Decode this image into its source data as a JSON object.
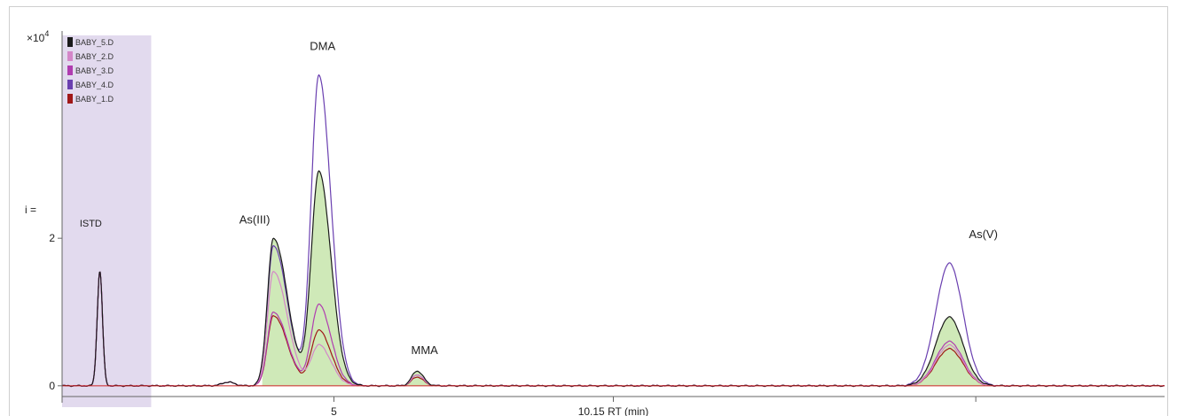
{
  "chart_data": {
    "type": "line",
    "y_multiplier_label": "×10",
    "y_multiplier_exp": "4",
    "y_ticks": [
      {
        "value": 0,
        "label": "0"
      },
      {
        "value": 2,
        "label": "2"
      }
    ],
    "y_axis_fragment": "i =",
    "x_tick_labels": [
      "5",
      "10.15 RT (min)"
    ],
    "xlim": [
      0,
      14.6
    ],
    "ylim": [
      -0.05,
      4.75
    ],
    "legend": [
      "BABY_5.D",
      "BABY_2.D",
      "BABY_3.D",
      "BABY_4.D",
      "BABY_1.D"
    ],
    "peak_labels": [
      {
        "text": "ISTD",
        "x": 0.38,
        "y": 2.16
      },
      {
        "text": "As(III)",
        "x": 2.55,
        "y": 2.2
      },
      {
        "text": "DMA",
        "x": 3.45,
        "y": 4.55
      },
      {
        "text": "MMA",
        "x": 4.8,
        "y": 0.43
      },
      {
        "text": "As(V)",
        "x": 12.2,
        "y": 2.0
      }
    ],
    "peaks": [
      {
        "name": "ISTD",
        "rt": 0.5,
        "width": 0.035,
        "skew": 1.0
      },
      {
        "name": "As(III)",
        "rt": 2.8,
        "width": 0.08,
        "skew": 2.3
      },
      {
        "name": "DMA",
        "rt": 3.4,
        "width": 0.1,
        "skew": 1.6
      },
      {
        "name": "MMA",
        "rt": 4.7,
        "width": 0.07,
        "skew": 1.2
      },
      {
        "name": "As(V)",
        "rt": 11.75,
        "width": 0.18,
        "skew": 1.0
      }
    ],
    "series": [
      {
        "name": "BABY_5.D",
        "color": "#1a1a1a",
        "heights": [
          1.55,
          2.0,
          2.9,
          0.2,
          0.93
        ]
      },
      {
        "name": "BABY_2.D",
        "color": "#d486c8",
        "heights": [
          1.55,
          1.55,
          0.55,
          0.15,
          0.55
        ]
      },
      {
        "name": "BABY_3.D",
        "color": "#b03cb0",
        "heights": [
          1.55,
          1.0,
          1.1,
          0.15,
          0.6
        ]
      },
      {
        "name": "BABY_4.D",
        "color": "#6a3fb0",
        "heights": [
          1.55,
          1.9,
          4.2,
          0.15,
          1.66
        ]
      },
      {
        "name": "BABY_1.D",
        "color": "#a01818",
        "heights": [
          1.55,
          0.95,
          0.75,
          0.12,
          0.5
        ]
      }
    ],
    "shaded_region_x": [
      0,
      1.18
    ],
    "colors": {
      "shade": "#e2daee",
      "peak_fill": "#cfe9b8",
      "baseline": "#cc2222"
    }
  }
}
